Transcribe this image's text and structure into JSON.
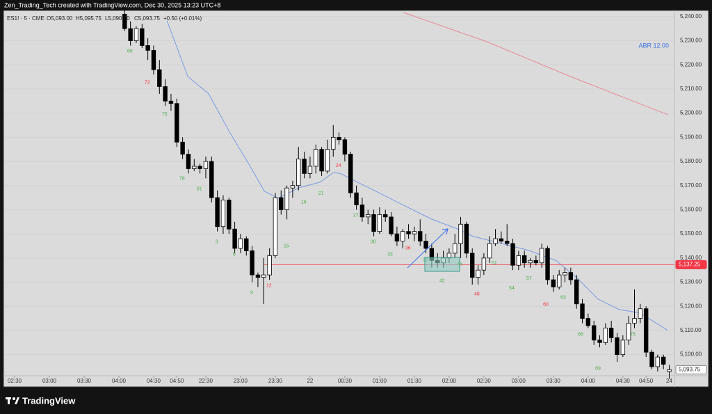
{
  "header": "Zen_Trading_Tech created with TradingView.com, Dec 30, 2025 13:23 UTC+8",
  "footer": "TradingView",
  "chart_data": {
    "type": "candlestick",
    "symbol": "ES1! · 5 · CME",
    "legend_values": [
      "O5,093.00",
      "H5,095.75",
      "L5,090.00",
      "C5,093.75"
    ],
    "change": "+0.50 (+0.01%)",
    "indicator_label": "ABR  12.00",
    "up_color": "#ffffff",
    "down_color": "#000000",
    "wick_color": "#000000",
    "xlim": [
      -19.8,
      95.9
    ],
    "ylim": [
      5091.25,
      5242.25
    ],
    "xticks": [
      {
        "value": -18,
        "label": "02:30"
      },
      {
        "value": -12,
        "label": "03:00"
      },
      {
        "value": -6,
        "label": "03:30"
      },
      {
        "value": 0,
        "label": "04:00"
      },
      {
        "value": 6,
        "label": "04:30"
      },
      {
        "value": 10,
        "label": "04:50"
      },
      {
        "value": 15,
        "label": "22:30"
      },
      {
        "value": 21,
        "label": "23:00"
      },
      {
        "value": 27,
        "label": "23:30"
      },
      {
        "value": 33,
        "label": "22"
      },
      {
        "value": 39,
        "label": "00:30"
      },
      {
        "value": 45,
        "label": "01:00"
      },
      {
        "value": 51,
        "label": "01:30"
      },
      {
        "value": 57,
        "label": "02:00"
      },
      {
        "value": 63,
        "label": "02:30"
      },
      {
        "value": 69,
        "label": "03:00"
      },
      {
        "value": 75,
        "label": "03:30"
      },
      {
        "value": 81,
        "label": "04:00"
      },
      {
        "value": 87,
        "label": "04:30"
      },
      {
        "value": 91,
        "label": "04:50"
      },
      {
        "value": 95,
        "label": "24"
      }
    ],
    "yticks": [
      {
        "value": 5100,
        "label": "5,100.00"
      },
      {
        "value": 5110,
        "label": "5,110.00"
      },
      {
        "value": 5120,
        "label": "5,120.00"
      },
      {
        "value": 5130,
        "label": "5,130.00"
      },
      {
        "value": 5140,
        "label": "5,140.00"
      },
      {
        "value": 5150,
        "label": "5,150.00"
      },
      {
        "value": 5160,
        "label": "5,160.00"
      },
      {
        "value": 5170,
        "label": "5,170.00"
      },
      {
        "value": 5180,
        "label": "5,180.00"
      },
      {
        "value": 5190,
        "label": "5,190.00"
      },
      {
        "value": 5200,
        "label": "5,200.00"
      },
      {
        "value": 5210,
        "label": "5,210.00"
      },
      {
        "value": 5220,
        "label": "5,220.00"
      },
      {
        "value": 5230,
        "label": "5,230.00"
      },
      {
        "value": 5240,
        "label": "5,240.00"
      }
    ],
    "ohlc": [
      [
        5241,
        5244,
        5234,
        5235
      ],
      [
        5235,
        5238,
        5228,
        5230
      ],
      [
        5230,
        5236,
        5229,
        5235
      ],
      [
        5235,
        5237,
        5227,
        5228
      ],
      [
        5228,
        5231,
        5222,
        5226
      ],
      [
        5226,
        5228,
        5216,
        5218
      ],
      [
        5218,
        5222,
        5208,
        5211
      ],
      [
        5211,
        5214,
        5203,
        5205
      ],
      [
        5205,
        5208,
        5201,
        5204
      ],
      [
        5204,
        5206,
        5186,
        5188
      ],
      [
        5188,
        5190,
        5181,
        5183
      ],
      [
        5183,
        5185,
        5175,
        5177
      ],
      [
        5177,
        5181,
        5176,
        5178
      ],
      [
        5178,
        5179,
        5175,
        5177
      ],
      [
        5177,
        5182,
        5173,
        5180
      ],
      [
        5180,
        5182,
        5163,
        5165
      ],
      [
        5165,
        5168,
        5151,
        5153
      ],
      [
        5153,
        5166,
        5150,
        5164
      ],
      [
        5164,
        5165,
        5150,
        5152
      ],
      [
        5152,
        5155,
        5142,
        5144
      ],
      [
        5144,
        5150,
        5142,
        5148
      ],
      [
        5148,
        5149,
        5141,
        5143
      ],
      [
        5143,
        5145,
        5130,
        5133
      ],
      [
        5133,
        5134,
        5128,
        5132
      ],
      [
        5132,
        5140,
        5121,
        5133
      ],
      [
        5133,
        5144,
        5131,
        5141
      ],
      [
        5141,
        5167,
        5140,
        5165
      ],
      [
        5165,
        5168,
        5158,
        5160
      ],
      [
        5160,
        5170,
        5156,
        5169
      ],
      [
        5169,
        5172,
        5165,
        5170
      ],
      [
        5170,
        5186,
        5168,
        5181
      ],
      [
        5181,
        5184,
        5173,
        5175
      ],
      [
        5175,
        5182,
        5173,
        5178
      ],
      [
        5178,
        5187,
        5175,
        5185
      ],
      [
        5185,
        5186,
        5174,
        5176
      ],
      [
        5176,
        5189,
        5175,
        5185
      ],
      [
        5185,
        5195,
        5182,
        5190
      ],
      [
        5190,
        5192,
        5187,
        5189
      ],
      [
        5189,
        5190,
        5180,
        5183
      ],
      [
        5183,
        5184,
        5165,
        5167
      ],
      [
        5167,
        5170,
        5160,
        5162
      ],
      [
        5162,
        5165,
        5155,
        5157
      ],
      [
        5157,
        5160,
        5154,
        5158
      ],
      [
        5158,
        5160,
        5149,
        5151
      ],
      [
        5151,
        5161,
        5150,
        5158
      ],
      [
        5158,
        5160,
        5155,
        5157
      ],
      [
        5157,
        5159,
        5149,
        5150
      ],
      [
        5150,
        5153,
        5145,
        5147
      ],
      [
        5147,
        5152,
        5144,
        5151
      ],
      [
        5151,
        5154,
        5148,
        5150
      ],
      [
        5150,
        5153,
        5147,
        5151
      ],
      [
        5151,
        5156,
        5145,
        5147
      ],
      [
        5147,
        5150,
        5142,
        5144
      ],
      [
        5144,
        5146,
        5136,
        5139
      ],
      [
        5139,
        5142,
        5136,
        5138
      ],
      [
        5138,
        5143,
        5136,
        5140
      ],
      [
        5140,
        5144,
        5138,
        5142
      ],
      [
        5142,
        5150,
        5140,
        5146
      ],
      [
        5146,
        5157,
        5140,
        5154
      ],
      [
        5154,
        5155,
        5140,
        5142
      ],
      [
        5142,
        5144,
        5129,
        5132
      ],
      [
        5132,
        5137,
        5129,
        5135
      ],
      [
        5135,
        5142,
        5133,
        5140
      ],
      [
        5140,
        5149,
        5138,
        5146
      ],
      [
        5146,
        5152,
        5145,
        5148
      ],
      [
        5148,
        5151,
        5146,
        5147
      ],
      [
        5147,
        5154,
        5145,
        5146
      ],
      [
        5146,
        5148,
        5135,
        5137
      ],
      [
        5137,
        5143,
        5135,
        5141
      ],
      [
        5141,
        5143,
        5136,
        5138
      ],
      [
        5138,
        5140,
        5136,
        5139
      ],
      [
        5139,
        5141,
        5137,
        5138
      ],
      [
        5138,
        5146,
        5136,
        5144
      ],
      [
        5144,
        5145,
        5129,
        5131
      ],
      [
        5131,
        5133,
        5126,
        5128
      ],
      [
        5128,
        5135,
        5127,
        5133
      ],
      [
        5133,
        5136,
        5130,
        5134
      ],
      [
        5134,
        5136,
        5129,
        5131
      ],
      [
        5131,
        5133,
        5119,
        5121
      ],
      [
        5121,
        5123,
        5113,
        5115
      ],
      [
        5115,
        5117,
        5111,
        5112
      ],
      [
        5112,
        5114,
        5104,
        5106
      ],
      [
        5106,
        5108,
        5103,
        5105
      ],
      [
        5105,
        5113,
        5104,
        5111
      ],
      [
        5111,
        5114,
        5105,
        5107
      ],
      [
        5107,
        5109,
        5097,
        5100
      ],
      [
        5100,
        5108,
        5099,
        5106
      ],
      [
        5106,
        5116,
        5104,
        5113
      ],
      [
        5113,
        5127,
        5111,
        5115
      ],
      [
        5115,
        5121,
        5113,
        5119
      ],
      [
        5119,
        5120,
        5099,
        5101
      ],
      [
        5101,
        5102,
        5094,
        5095
      ],
      [
        5095,
        5100,
        5093,
        5099
      ],
      [
        5099,
        5100,
        5094,
        5096
      ],
      [
        5093,
        5095.75,
        5090,
        5093.75
      ]
    ],
    "series": [
      {
        "color": "#7b9be0",
        "x": [
          8.3,
          11.9,
          15.5,
          19.1,
          22.7,
          25.1,
          27.5,
          31.1,
          34.7,
          37.1,
          38.3,
          40.7,
          44.3,
          49.1,
          53.9,
          58.7,
          61.1,
          65.9,
          70.7,
          75.5,
          79.1,
          82.7,
          86.3,
          89.9,
          94.7
        ],
        "values": [
          5238.3,
          5215.2,
          5208,
          5192.2,
          5177.8,
          5167.7,
          5164.8,
          5169.1,
          5171.4,
          5175.5,
          5174.9,
          5172,
          5167.7,
          5161.9,
          5156.2,
          5151.8,
          5149,
          5146.1,
          5143.2,
          5138.9,
          5131.7,
          5123,
          5118.7,
          5117.3,
          5110.1
        ]
      },
      {
        "color": "#e88a94",
        "x": [
          49.1,
          63.5,
          77.9,
          94.7
        ],
        "values": [
          5241.7,
          5229.6,
          5215.2,
          5199.4
        ]
      }
    ],
    "annotations": [
      {
        "text": "69",
        "x": 1.9,
        "y": 5225.6,
        "color": "#4caf50"
      },
      {
        "text": "72",
        "x": 4.9,
        "y": 5212.6,
        "color": "#f23645"
      },
      {
        "text": "75",
        "x": 7.9,
        "y": 5199.4,
        "color": "#4caf50"
      },
      {
        "text": "78",
        "x": 10.9,
        "y": 5172.9,
        "color": "#4caf50"
      },
      {
        "text": "81",
        "x": 13.9,
        "y": 5168.6,
        "color": "#4caf50"
      },
      {
        "text": "3",
        "x": 16.9,
        "y": 5146.7,
        "color": "#4caf50"
      },
      {
        "text": "6",
        "x": 19.9,
        "y": 5141.5,
        "color": "#4caf50"
      },
      {
        "text": "9",
        "x": 22.9,
        "y": 5125.6,
        "color": "#4caf50"
      },
      {
        "text": "12",
        "x": 25.9,
        "y": 5128.5,
        "color": "#f23645"
      },
      {
        "text": "15",
        "x": 28.9,
        "y": 5144.9,
        "color": "#4caf50"
      },
      {
        "text": "18",
        "x": 31.9,
        "y": 5163.1,
        "color": "#4caf50"
      },
      {
        "text": "21",
        "x": 34.9,
        "y": 5166.8,
        "color": "#4caf50"
      },
      {
        "text": "24",
        "x": 37.9,
        "y": 5178.3,
        "color": "#f23645"
      },
      {
        "text": "27",
        "x": 40.9,
        "y": 5157.6,
        "color": "#4caf50"
      },
      {
        "text": "30",
        "x": 43.9,
        "y": 5146.7,
        "color": "#4caf50"
      },
      {
        "text": "33",
        "x": 46.8,
        "y": 5141.5,
        "color": "#4caf50"
      },
      {
        "text": "36",
        "x": 49.9,
        "y": 5144.1,
        "color": "#f23645"
      },
      {
        "text": "39",
        "x": 52.9,
        "y": 5139.2,
        "color": "#4caf50"
      },
      {
        "text": "42",
        "x": 55.8,
        "y": 5130.5,
        "color": "#4caf50"
      },
      {
        "text": "45",
        "x": 58.8,
        "y": 5137.4,
        "color": "#4caf50"
      },
      {
        "text": "48",
        "x": 61.8,
        "y": 5125,
        "color": "#f23645"
      },
      {
        "text": "51",
        "x": 64.8,
        "y": 5137.9,
        "color": "#4caf50"
      },
      {
        "text": "54",
        "x": 67.8,
        "y": 5127.5,
        "color": "#4caf50"
      },
      {
        "text": "57",
        "x": 70.8,
        "y": 5131.6,
        "color": "#4caf50"
      },
      {
        "text": "60",
        "x": 73.7,
        "y": 5120.7,
        "color": "#f23645"
      },
      {
        "text": "63",
        "x": 76.7,
        "y": 5123.6,
        "color": "#4caf50"
      },
      {
        "text": "66",
        "x": 79.7,
        "y": 5108.4,
        "color": "#4caf50"
      },
      {
        "text": "69",
        "x": 82.7,
        "y": 5094.3,
        "color": "#4caf50"
      },
      {
        "text": "75",
        "x": 88.7,
        "y": 5108.4,
        "color": "#4caf50"
      }
    ],
    "price_tags": [
      {
        "value": 5137.25,
        "label": "5,137.25",
        "color": "#f23645",
        "line": true
      },
      {
        "value": 5093.75,
        "label": "5,093.75",
        "color": "#ffffff",
        "line": false
      }
    ]
  }
}
